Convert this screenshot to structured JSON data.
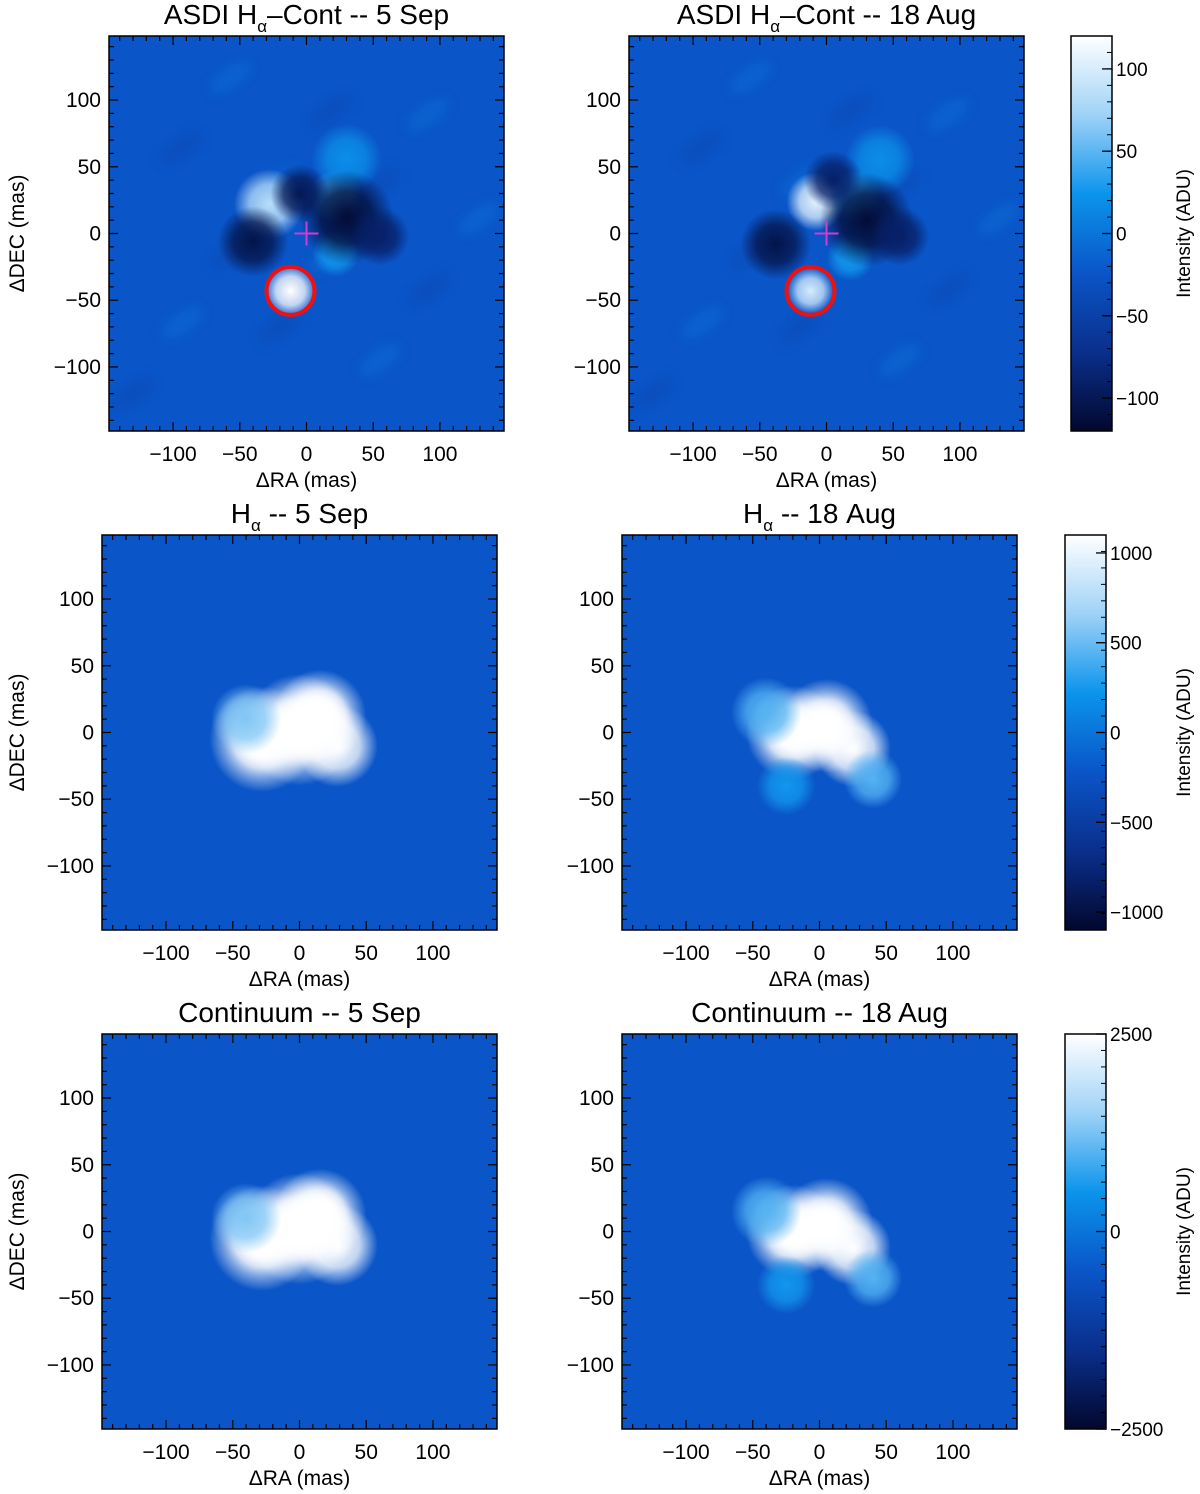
{
  "colormap": {
    "stops": [
      "#02082e",
      "#0a2f8c",
      "#0a55c8",
      "#0b94ec",
      "#9fd2f7",
      "#ffffff"
    ],
    "background": "#0a55c8",
    "circle_color": "#ee1111",
    "marker_color": "#d13bd0"
  },
  "chart_data": [
    {
      "type": "heatmap",
      "row": 1,
      "title_main": "ASDI H",
      "title_sub": "α",
      "title_rest": "–Cont -- 5 Sep",
      "xlabel": "ΔRA (mas)",
      "ylabel": "ΔDEC (mas)",
      "xlim": [
        -148,
        148
      ],
      "ylim": [
        -148,
        148
      ],
      "xticks": [
        -100,
        -50,
        0,
        50,
        100
      ],
      "yticks": [
        -100,
        -50,
        0,
        50,
        100
      ],
      "xtick_labels": [
        "−100",
        "−50",
        "0",
        "50",
        "100"
      ],
      "ytick_labels": [
        "−100",
        "−50",
        "0",
        "50",
        "100"
      ],
      "show_ylabel": true,
      "features": [
        {
          "x": -12,
          "y": -43,
          "sigma": 9,
          "amp": 1.0
        },
        {
          "x": -28,
          "y": 22,
          "sigma": 12,
          "amp": 0.75
        },
        {
          "x": 22,
          "y": 28,
          "sigma": 9,
          "amp": 0.45
        },
        {
          "x": 30,
          "y": 56,
          "sigma": 12,
          "amp": 0.3
        },
        {
          "x": 22,
          "y": -15,
          "sigma": 8,
          "amp": 0.35
        },
        {
          "x": -40,
          "y": -6,
          "sigma": 12,
          "amp": -0.85
        },
        {
          "x": 30,
          "y": 12,
          "sigma": 16,
          "amp": -0.95
        },
        {
          "x": 55,
          "y": -2,
          "sigma": 10,
          "amp": -0.7
        },
        {
          "x": -5,
          "y": 30,
          "sigma": 10,
          "amp": -0.8
        }
      ],
      "circle": {
        "x": -12,
        "y": -43,
        "r": 18
      },
      "cross": {
        "x": 0,
        "y": 0
      }
    },
    {
      "type": "heatmap",
      "row": 1,
      "title_main": "ASDI H",
      "title_sub": "α",
      "title_rest": "–Cont -- 18 Aug",
      "xlabel": "ΔRA (mas)",
      "ylabel": "ΔDEC (mas)",
      "xlim": [
        -148,
        148
      ],
      "ylim": [
        -148,
        148
      ],
      "xticks": [
        -100,
        -50,
        0,
        50,
        100
      ],
      "yticks": [
        -100,
        -50,
        0,
        50,
        100
      ],
      "xtick_labels": [
        "−100",
        "−50",
        "0",
        "50",
        "100"
      ],
      "ytick_labels": [
        "−100",
        "−50",
        "0",
        "50",
        "100"
      ],
      "show_ylabel": false,
      "features": [
        {
          "x": -12,
          "y": -43,
          "sigma": 8,
          "amp": 0.85
        },
        {
          "x": -8,
          "y": 24,
          "sigma": 10,
          "amp": 0.9
        },
        {
          "x": 22,
          "y": 28,
          "sigma": 9,
          "amp": 0.4
        },
        {
          "x": 40,
          "y": 55,
          "sigma": 12,
          "amp": 0.3
        },
        {
          "x": 18,
          "y": -18,
          "sigma": 8,
          "amp": 0.35
        },
        {
          "x": -38,
          "y": -8,
          "sigma": 12,
          "amp": -0.85
        },
        {
          "x": 30,
          "y": 10,
          "sigma": 16,
          "amp": -0.95
        },
        {
          "x": 55,
          "y": -2,
          "sigma": 10,
          "amp": -0.7
        },
        {
          "x": 5,
          "y": 40,
          "sigma": 10,
          "amp": -0.7
        }
      ],
      "circle": {
        "x": -12,
        "y": -43,
        "r": 18
      },
      "cross": {
        "x": 0,
        "y": 0
      }
    },
    {
      "type": "heatmap",
      "row": 2,
      "title_main": "H",
      "title_sub": "α",
      "title_rest": " -- 5 Sep",
      "xlabel": "ΔRA (mas)",
      "ylabel": "ΔDEC (mas)",
      "xlim": [
        -148,
        148
      ],
      "ylim": [
        -148,
        148
      ],
      "xticks": [
        -100,
        -50,
        0,
        50,
        100
      ],
      "yticks": [
        -100,
        -50,
        0,
        50,
        100
      ],
      "xtick_labels": [
        "−100",
        "−50",
        "0",
        "50",
        "100"
      ],
      "ytick_labels": [
        "−100",
        "−50",
        "0",
        "50",
        "100"
      ],
      "show_ylabel": true,
      "features": [
        {
          "x": -28,
          "y": -5,
          "sigma": 18,
          "amp": 1.6
        },
        {
          "x": 0,
          "y": 2,
          "sigma": 19,
          "amp": 1.8
        },
        {
          "x": 15,
          "y": 12,
          "sigma": 16,
          "amp": 1.5
        },
        {
          "x": 28,
          "y": -10,
          "sigma": 14,
          "amp": 1.1
        },
        {
          "x": -40,
          "y": 10,
          "sigma": 12,
          "amp": 0.6
        }
      ]
    },
    {
      "type": "heatmap",
      "row": 2,
      "title_main": "H",
      "title_sub": "α",
      "title_rest": " -- 18 Aug",
      "xlabel": "ΔRA (mas)",
      "ylabel": "ΔDEC (mas)",
      "xlim": [
        -148,
        148
      ],
      "ylim": [
        -148,
        148
      ],
      "xticks": [
        -100,
        -50,
        0,
        50,
        100
      ],
      "yticks": [
        -100,
        -50,
        0,
        50,
        100
      ],
      "xtick_labels": [
        "−100",
        "−50",
        "0",
        "50",
        "100"
      ],
      "ytick_labels": [
        "−100",
        "−50",
        "0",
        "50",
        "100"
      ],
      "show_ylabel": false,
      "features": [
        {
          "x": -20,
          "y": 0,
          "sigma": 16,
          "amp": 1.5
        },
        {
          "x": 5,
          "y": 5,
          "sigma": 16,
          "amp": 1.5
        },
        {
          "x": 25,
          "y": -12,
          "sigma": 13,
          "amp": 1.0
        },
        {
          "x": 40,
          "y": -35,
          "sigma": 10,
          "amp": 0.5
        },
        {
          "x": -25,
          "y": -40,
          "sigma": 10,
          "amp": 0.35
        },
        {
          "x": -40,
          "y": 15,
          "sigma": 12,
          "amp": 0.5
        }
      ]
    },
    {
      "type": "heatmap",
      "row": 3,
      "title_main": "Continuum -- 5 Sep",
      "title_sub": "",
      "title_rest": "",
      "xlabel": "ΔRA (mas)",
      "ylabel": "ΔDEC (mas)",
      "xlim": [
        -148,
        148
      ],
      "ylim": [
        -148,
        148
      ],
      "xticks": [
        -100,
        -50,
        0,
        50,
        100
      ],
      "yticks": [
        -100,
        -50,
        0,
        50,
        100
      ],
      "xtick_labels": [
        "−100",
        "−50",
        "0",
        "50",
        "100"
      ],
      "ytick_labels": [
        "−100",
        "−50",
        "0",
        "50",
        "100"
      ],
      "show_ylabel": true,
      "features": [
        {
          "x": -28,
          "y": -5,
          "sigma": 18,
          "amp": 1.6
        },
        {
          "x": 0,
          "y": 2,
          "sigma": 19,
          "amp": 1.8
        },
        {
          "x": 15,
          "y": 12,
          "sigma": 16,
          "amp": 1.5
        },
        {
          "x": 28,
          "y": -10,
          "sigma": 14,
          "amp": 1.1
        },
        {
          "x": -40,
          "y": 10,
          "sigma": 12,
          "amp": 0.6
        }
      ]
    },
    {
      "type": "heatmap",
      "row": 3,
      "title_main": "Continuum -- 18 Aug",
      "title_sub": "",
      "title_rest": "",
      "xlabel": "ΔRA (mas)",
      "ylabel": "ΔDEC (mas)",
      "xlim": [
        -148,
        148
      ],
      "ylim": [
        -148,
        148
      ],
      "xticks": [
        -100,
        -50,
        0,
        50,
        100
      ],
      "yticks": [
        -100,
        -50,
        0,
        50,
        100
      ],
      "xtick_labels": [
        "−100",
        "−50",
        "0",
        "50",
        "100"
      ],
      "ytick_labels": [
        "−100",
        "−50",
        "0",
        "50",
        "100"
      ],
      "show_ylabel": false,
      "features": [
        {
          "x": -20,
          "y": 0,
          "sigma": 16,
          "amp": 1.5
        },
        {
          "x": 5,
          "y": 5,
          "sigma": 16,
          "amp": 1.5
        },
        {
          "x": 25,
          "y": -12,
          "sigma": 13,
          "amp": 1.1
        },
        {
          "x": 40,
          "y": -35,
          "sigma": 10,
          "amp": 0.5
        },
        {
          "x": -25,
          "y": -40,
          "sigma": 10,
          "amp": 0.35
        },
        {
          "x": -40,
          "y": 15,
          "sigma": 12,
          "amp": 0.5
        }
      ]
    }
  ],
  "colorbars": [
    {
      "row": 1,
      "range": [
        -120,
        120
      ],
      "ticks": [
        100,
        50,
        0,
        -50,
        -100
      ],
      "tick_labels": [
        "100",
        "50",
        "0",
        "−50",
        "−100"
      ],
      "label": "Intensity (ADU)"
    },
    {
      "row": 2,
      "range": [
        -1100,
        1100
      ],
      "ticks": [
        1000,
        500,
        0,
        -500,
        -1000
      ],
      "tick_labels": [
        "1000",
        "500",
        "0",
        "−500",
        "−1000"
      ],
      "label": "Intensity (ADU)"
    },
    {
      "row": 3,
      "range": [
        -2500,
        2500
      ],
      "ticks": [
        2500,
        0,
        -2500
      ],
      "tick_labels": [
        "2500",
        "0",
        "−2500"
      ],
      "label": "Intensity (ADU)"
    }
  ]
}
